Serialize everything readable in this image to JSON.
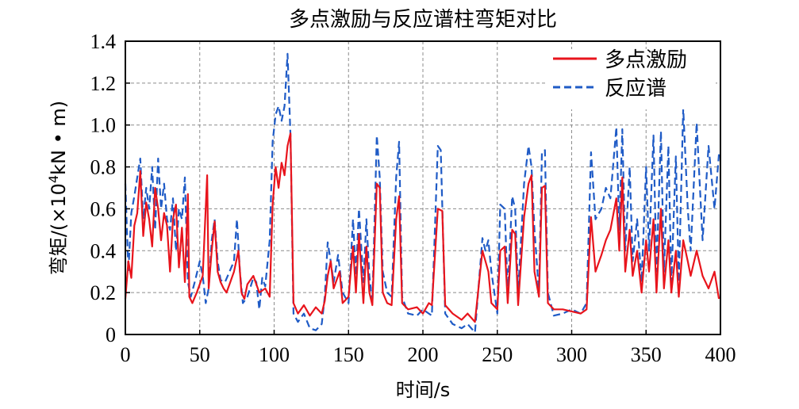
{
  "chart_data": {
    "type": "line",
    "title": "多点激励与反应谱柱弯矩对比",
    "xlabel": "时间/s",
    "ylabel_prefix": "弯矩/(×10",
    "ylabel_exp": "4",
    "ylabel_suffix": "kN • m)",
    "xlim": [
      0,
      400
    ],
    "ylim": [
      0,
      1.4
    ],
    "grid": true,
    "legend_position": "top-right",
    "x_ticks": [
      "0",
      "50",
      "100",
      "150",
      "200",
      "250",
      "300",
      "350",
      "400"
    ],
    "y_ticks": [
      "0",
      "0.2",
      "0.4",
      "0.6",
      "0.8",
      "1.0",
      "1.2",
      "1.4"
    ],
    "series": [
      {
        "name": "多点激励",
        "color": "#e8141c",
        "style": "solid",
        "points": [
          [
            0,
            0.17
          ],
          [
            2,
            0.35
          ],
          [
            4,
            0.27
          ],
          [
            6,
            0.52
          ],
          [
            8,
            0.58
          ],
          [
            10,
            0.78
          ],
          [
            12,
            0.47
          ],
          [
            14,
            0.63
          ],
          [
            16,
            0.55
          ],
          [
            18,
            0.42
          ],
          [
            20,
            0.7
          ],
          [
            22,
            0.6
          ],
          [
            24,
            0.45
          ],
          [
            26,
            0.58
          ],
          [
            28,
            0.52
          ],
          [
            30,
            0.3
          ],
          [
            32,
            0.55
          ],
          [
            34,
            0.62
          ],
          [
            36,
            0.32
          ],
          [
            38,
            0.51
          ],
          [
            40,
            0.25
          ],
          [
            42,
            0.67
          ],
          [
            43,
            0.18
          ],
          [
            45,
            0.15
          ],
          [
            48,
            0.2
          ],
          [
            52,
            0.28
          ],
          [
            55,
            0.76
          ],
          [
            56,
            0.22
          ],
          [
            58,
            0.4
          ],
          [
            60,
            0.54
          ],
          [
            62,
            0.3
          ],
          [
            64,
            0.25
          ],
          [
            66,
            0.22
          ],
          [
            68,
            0.2
          ],
          [
            70,
            0.24
          ],
          [
            73,
            0.3
          ],
          [
            76,
            0.4
          ],
          [
            78,
            0.2
          ],
          [
            80,
            0.17
          ],
          [
            82,
            0.24
          ],
          [
            86,
            0.28
          ],
          [
            90,
            0.2
          ],
          [
            94,
            0.22
          ],
          [
            97,
            0.18
          ],
          [
            99,
            0.62
          ],
          [
            101,
            0.8
          ],
          [
            103,
            0.7
          ],
          [
            105,
            0.82
          ],
          [
            107,
            0.76
          ],
          [
            109,
            0.9
          ],
          [
            111,
            0.96
          ],
          [
            113,
            0.15
          ],
          [
            116,
            0.1
          ],
          [
            120,
            0.14
          ],
          [
            124,
            0.09
          ],
          [
            128,
            0.13
          ],
          [
            132,
            0.1
          ],
          [
            134,
            0.16
          ],
          [
            136,
            0.28
          ],
          [
            138,
            0.35
          ],
          [
            140,
            0.22
          ],
          [
            144,
            0.3
          ],
          [
            146,
            0.15
          ],
          [
            150,
            0.18
          ],
          [
            153,
            0.42
          ],
          [
            155,
            0.2
          ],
          [
            157,
            0.48
          ],
          [
            160,
            0.15
          ],
          [
            162,
            0.42
          ],
          [
            164,
            0.2
          ],
          [
            166,
            0.14
          ],
          [
            169,
            0.72
          ],
          [
            171,
            0.7
          ],
          [
            173,
            0.2
          ],
          [
            176,
            0.15
          ],
          [
            179,
            0.14
          ],
          [
            182,
            0.55
          ],
          [
            184,
            0.66
          ],
          [
            186,
            0.15
          ],
          [
            190,
            0.12
          ],
          [
            196,
            0.13
          ],
          [
            200,
            0.1
          ],
          [
            204,
            0.15
          ],
          [
            206,
            0.14
          ],
          [
            210,
            0.6
          ],
          [
            213,
            0.59
          ],
          [
            215,
            0.14
          ],
          [
            220,
            0.1
          ],
          [
            226,
            0.07
          ],
          [
            230,
            0.1
          ],
          [
            235,
            0.06
          ],
          [
            240,
            0.4
          ],
          [
            242,
            0.35
          ],
          [
            244,
            0.3
          ],
          [
            246,
            0.15
          ],
          [
            250,
            0.12
          ],
          [
            252,
            0.4
          ],
          [
            255,
            0.42
          ],
          [
            257,
            0.15
          ],
          [
            260,
            0.5
          ],
          [
            262,
            0.48
          ],
          [
            264,
            0.14
          ],
          [
            268,
            0.56
          ],
          [
            271,
            0.72
          ],
          [
            273,
            0.76
          ],
          [
            275,
            0.3
          ],
          [
            278,
            0.18
          ],
          [
            280,
            0.7
          ],
          [
            282,
            0.71
          ],
          [
            284,
            0.15
          ],
          [
            288,
            0.12
          ],
          [
            294,
            0.12
          ],
          [
            300,
            0.11
          ],
          [
            306,
            0.1
          ],
          [
            310,
            0.12
          ],
          [
            313,
            0.56
          ],
          [
            316,
            0.3
          ],
          [
            320,
            0.38
          ],
          [
            323,
            0.45
          ],
          [
            326,
            0.5
          ],
          [
            330,
            0.65
          ],
          [
            332,
            0.4
          ],
          [
            334,
            0.75
          ],
          [
            336,
            0.3
          ],
          [
            339,
            0.5
          ],
          [
            341,
            0.28
          ],
          [
            344,
            0.4
          ],
          [
            347,
            0.2
          ],
          [
            350,
            0.45
          ],
          [
            352,
            0.3
          ],
          [
            355,
            0.55
          ],
          [
            357,
            0.2
          ],
          [
            360,
            0.6
          ],
          [
            362,
            0.22
          ],
          [
            365,
            0.45
          ],
          [
            367,
            0.2
          ],
          [
            370,
            0.4
          ],
          [
            372,
            0.18
          ],
          [
            375,
            0.45
          ],
          [
            378,
            0.35
          ],
          [
            380,
            0.28
          ],
          [
            384,
            0.4
          ],
          [
            388,
            0.28
          ],
          [
            392,
            0.22
          ],
          [
            396,
            0.3
          ],
          [
            399,
            0.17
          ]
        ]
      },
      {
        "name": "反应谱",
        "color": "#1f5bc6",
        "style": "dashed",
        "points": [
          [
            0,
            0.72
          ],
          [
            2,
            0.3
          ],
          [
            4,
            0.58
          ],
          [
            6,
            0.66
          ],
          [
            8,
            0.75
          ],
          [
            10,
            0.84
          ],
          [
            12,
            0.55
          ],
          [
            14,
            0.7
          ],
          [
            16,
            0.6
          ],
          [
            18,
            0.8
          ],
          [
            20,
            0.5
          ],
          [
            22,
            0.84
          ],
          [
            24,
            0.6
          ],
          [
            26,
            0.72
          ],
          [
            28,
            0.55
          ],
          [
            30,
            0.5
          ],
          [
            32,
            0.65
          ],
          [
            34,
            0.4
          ],
          [
            36,
            0.6
          ],
          [
            38,
            0.55
          ],
          [
            40,
            0.75
          ],
          [
            42,
            0.25
          ],
          [
            44,
            0.18
          ],
          [
            47,
            0.26
          ],
          [
            50,
            0.35
          ],
          [
            52,
            0.28
          ],
          [
            54,
            0.15
          ],
          [
            56,
            0.22
          ],
          [
            58,
            0.45
          ],
          [
            60,
            0.55
          ],
          [
            62,
            0.35
          ],
          [
            64,
            0.26
          ],
          [
            67,
            0.25
          ],
          [
            70,
            0.3
          ],
          [
            73,
            0.35
          ],
          [
            75,
            0.55
          ],
          [
            77,
            0.3
          ],
          [
            79,
            0.15
          ],
          [
            82,
            0.18
          ],
          [
            86,
            0.27
          ],
          [
            88,
            0.25
          ],
          [
            90,
            0.12
          ],
          [
            92,
            0.27
          ],
          [
            94,
            0.23
          ],
          [
            97,
            0.45
          ],
          [
            99,
            0.92
          ],
          [
            101,
            1.05
          ],
          [
            103,
            1.09
          ],
          [
            105,
            1.02
          ],
          [
            107,
            1.09
          ],
          [
            109,
            1.34
          ],
          [
            111,
            0.95
          ],
          [
            113,
            0.1
          ],
          [
            116,
            0.06
          ],
          [
            120,
            0.1
          ],
          [
            124,
            0.03
          ],
          [
            128,
            0.02
          ],
          [
            132,
            0.05
          ],
          [
            134,
            0.18
          ],
          [
            136,
            0.44
          ],
          [
            138,
            0.35
          ],
          [
            140,
            0.25
          ],
          [
            143,
            0.38
          ],
          [
            146,
            0.2
          ],
          [
            150,
            0.15
          ],
          [
            153,
            0.55
          ],
          [
            155,
            0.28
          ],
          [
            157,
            0.6
          ],
          [
            160,
            0.25
          ],
          [
            162,
            0.55
          ],
          [
            164,
            0.28
          ],
          [
            166,
            0.15
          ],
          [
            169,
            0.95
          ],
          [
            171,
            0.75
          ],
          [
            173,
            0.3
          ],
          [
            176,
            0.2
          ],
          [
            179,
            0.18
          ],
          [
            182,
            0.75
          ],
          [
            184,
            0.92
          ],
          [
            186,
            0.18
          ],
          [
            190,
            0.1
          ],
          [
            196,
            0.09
          ],
          [
            200,
            0.12
          ],
          [
            204,
            0.1
          ],
          [
            206,
            0.09
          ],
          [
            210,
            0.9
          ],
          [
            212,
            0.88
          ],
          [
            215,
            0.1
          ],
          [
            220,
            0.05
          ],
          [
            226,
            0.03
          ],
          [
            230,
            0.05
          ],
          [
            235,
            0.01
          ],
          [
            240,
            0.46
          ],
          [
            242,
            0.4
          ],
          [
            244,
            0.45
          ],
          [
            246,
            0.3
          ],
          [
            250,
            0.1
          ],
          [
            252,
            0.62
          ],
          [
            255,
            0.6
          ],
          [
            257,
            0.2
          ],
          [
            260,
            0.66
          ],
          [
            262,
            0.6
          ],
          [
            264,
            0.2
          ],
          [
            268,
            0.72
          ],
          [
            271,
            0.9
          ],
          [
            273,
            0.8
          ],
          [
            275,
            0.5
          ],
          [
            278,
            0.2
          ],
          [
            280,
            0.87
          ],
          [
            282,
            0.88
          ],
          [
            284,
            0.2
          ],
          [
            288,
            0.09
          ],
          [
            294,
            0.1
          ],
          [
            300,
            0.12
          ],
          [
            306,
            0.1
          ],
          [
            310,
            0.15
          ],
          [
            313,
            0.87
          ],
          [
            316,
            0.55
          ],
          [
            320,
            0.6
          ],
          [
            323,
            0.7
          ],
          [
            326,
            0.65
          ],
          [
            330,
            0.99
          ],
          [
            332,
            0.5
          ],
          [
            334,
            0.98
          ],
          [
            336,
            0.4
          ],
          [
            339,
            0.8
          ],
          [
            341,
            0.35
          ],
          [
            344,
            0.55
          ],
          [
            347,
            0.25
          ],
          [
            350,
            0.8
          ],
          [
            352,
            0.4
          ],
          [
            355,
            0.95
          ],
          [
            357,
            0.3
          ],
          [
            360,
            0.97
          ],
          [
            362,
            0.3
          ],
          [
            365,
            0.9
          ],
          [
            367,
            0.25
          ],
          [
            370,
            0.85
          ],
          [
            372,
            0.25
          ],
          [
            375,
            1.08
          ],
          [
            378,
            0.6
          ],
          [
            380,
            0.4
          ],
          [
            384,
            1.01
          ],
          [
            388,
            0.45
          ],
          [
            392,
            0.9
          ],
          [
            396,
            0.6
          ],
          [
            399,
            0.86
          ]
        ]
      }
    ]
  }
}
